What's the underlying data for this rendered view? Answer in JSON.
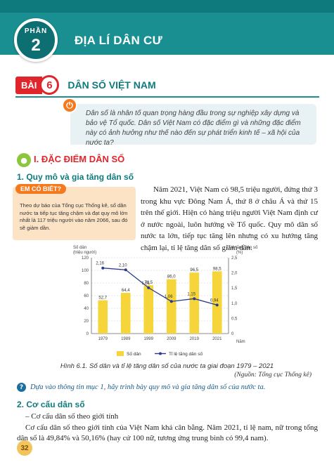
{
  "header": {
    "part_word": "PHẦN",
    "part_number": "2",
    "part_title": "ĐỊA LÍ DÂN CƯ"
  },
  "lesson": {
    "tag": "BÀI",
    "number": "6",
    "title": "DÂN SỐ VIỆT NAM"
  },
  "intro": {
    "text": "Dân số là nhân tố quan trọng hàng đầu trong sự nghiệp xây dựng và bảo vệ Tổ quốc. Dân số Việt Nam có đặc điểm gì và những đặc điểm này có ảnh hưởng như thế nào đến sự phát triển kinh tế – xã hội của nước ta?"
  },
  "section": {
    "title": "I. ĐẶC ĐIỂM DÂN SỐ",
    "sub1": "1. Quy mô và gia tăng dân số",
    "sub2": "2. Cơ cấu dân số"
  },
  "know_box": {
    "tag": "EM CÓ BIẾT?",
    "text": "Theo dự báo của Tổng cục Thống kê, số dân nước ta tiếp tục tăng chậm và đạt quy mô lớn nhất là 117 triệu người vào năm 2066, sau đó sẽ giảm dần."
  },
  "body": {
    "para1": "Năm 2021, Việt Nam có 98,5 triệu người, đứng thứ 3 trong khu vực Đông Nam Á, thứ 8 ở châu Á và thứ 15 trên thế giới. Hiện có hàng triệu người Việt Nam định cư ở nước ngoài, luôn hướng về Tổ quốc. Quy mô dân số nước ta lớn, tiếp tục tăng lên nhưng có xu hướng tăng chậm lại, tỉ lệ tăng dân số giảm dần.",
    "line1": "– Cơ cấu dân số theo giới tính",
    "line2": "Cơ cấu dân số theo giới tính của Việt Nam khá cân bằng. Năm 2021, tỉ lệ nam, nữ trong tổng dân số là 49,84% và 50,16% (hay cứ 100 nữ, tương ứng trung bình có 99,4 nam)."
  },
  "chart_data": {
    "type": "bar",
    "categories": [
      "1979",
      "1989",
      "1999",
      "2009",
      "2019",
      "2021"
    ],
    "series": [
      {
        "name": "Số dân",
        "kind": "bar",
        "axis": "left",
        "values": [
          52.7,
          64.4,
          76.5,
          86.0,
          96.5,
          98.5
        ],
        "labels": [
          "52,7",
          "64,4",
          "76,5",
          "86,0",
          "96,5",
          "98,5"
        ],
        "color": "#f5d53a"
      },
      {
        "name": "Tỉ lệ tăng dân số",
        "kind": "line",
        "axis": "right",
        "values": [
          2.16,
          2.1,
          1.51,
          1.06,
          1.15,
          0.94
        ],
        "labels": [
          "2,16",
          "2,10",
          "1,51",
          "1,06",
          "1,15",
          "0,94"
        ],
        "color": "#2b3a8c"
      }
    ],
    "ylabel_left": "Số dân\n(triệu người)",
    "ylabel_right": "Tỉ lệ tăng dân số\n(%)",
    "xlabel": "Năm",
    "ylim_left": [
      0,
      120
    ],
    "ylim_right": [
      0,
      2.5
    ],
    "yticks_left": [
      "0",
      "20",
      "40",
      "60",
      "80",
      "100",
      "120"
    ],
    "yticks_right": [
      "0",
      "0,5",
      "1,0",
      "1,5",
      "2,0",
      "2,5"
    ],
    "legend": "bottom",
    "grid": true
  },
  "chart_text": {
    "ylabel_left_1": "Số dân",
    "ylabel_left_2": "(triệu người)",
    "ylabel_right_1": "Tỉ lệ tăng dân số",
    "ylabel_right_2": "(%)",
    "xlabel": "Năm",
    "legend_bar": "Số dân",
    "legend_line": "Tỉ lệ tăng dân số"
  },
  "caption": {
    "text": "Hình 6.1. Số dân và tỉ lệ tăng dân số của nước ta giai đoạn 1979 – 2021",
    "source": "(Nguồn: Tổng cục Thống kê)"
  },
  "question": {
    "text": "Dựa vào thông tin mục 1, hãy trình bày quy mô và gia tăng dân số của nước ta."
  },
  "page": {
    "number": "32"
  },
  "colors": {
    "teal": "#1a8f92",
    "red": "#e0262b",
    "orange": "#f47a1f",
    "bar": "#f5d53a",
    "line": "#2b3a8c"
  }
}
